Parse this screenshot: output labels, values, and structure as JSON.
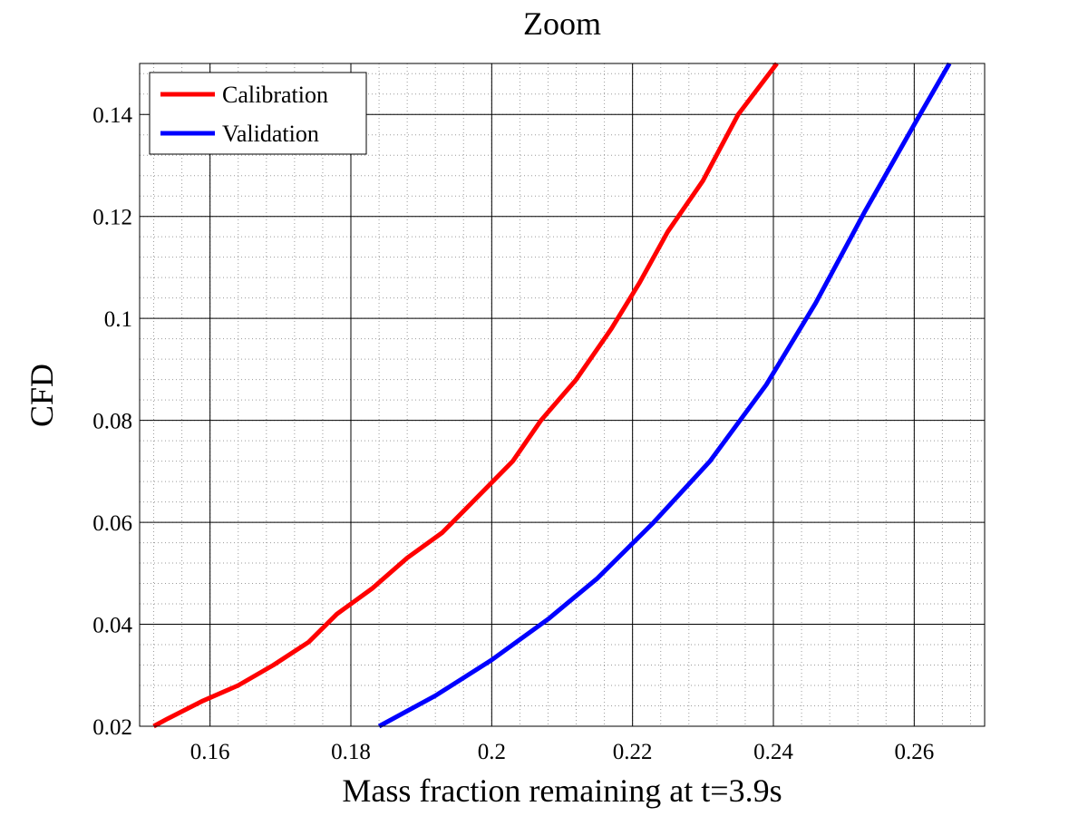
{
  "chart_data": {
    "type": "line",
    "title": "Zoom",
    "xlabel": "Mass fraction remaining at t=3.9s",
    "ylabel": "CFD",
    "xlim": [
      0.15,
      0.27
    ],
    "ylim": [
      0.02,
      0.15
    ],
    "x_ticks": [
      0.16,
      0.18,
      0.2,
      0.22,
      0.24,
      0.26
    ],
    "x_tick_labels": [
      "0.16",
      "0.18",
      "0.2",
      "0.22",
      "0.24",
      "0.26"
    ],
    "y_ticks": [
      0.02,
      0.04,
      0.06,
      0.08,
      0.1,
      0.12,
      0.14
    ],
    "y_tick_labels": [
      "0.02",
      "0.04",
      "0.06",
      "0.08",
      "0.1",
      "0.12",
      "0.14"
    ],
    "x_minor_step": 0.004,
    "y_minor_step": 0.004,
    "grid": true,
    "legend_position": "top-left",
    "series": [
      {
        "name": "Calibration",
        "color": "#ff0000",
        "points": [
          [
            0.152,
            0.02
          ],
          [
            0.154,
            0.0215
          ],
          [
            0.159,
            0.025
          ],
          [
            0.164,
            0.028
          ],
          [
            0.169,
            0.032
          ],
          [
            0.174,
            0.0365
          ],
          [
            0.178,
            0.042
          ],
          [
            0.183,
            0.047
          ],
          [
            0.188,
            0.053
          ],
          [
            0.193,
            0.058
          ],
          [
            0.198,
            0.065
          ],
          [
            0.203,
            0.072
          ],
          [
            0.207,
            0.08
          ],
          [
            0.212,
            0.088
          ],
          [
            0.217,
            0.098
          ],
          [
            0.221,
            0.107
          ],
          [
            0.225,
            0.117
          ],
          [
            0.23,
            0.127
          ],
          [
            0.235,
            0.14
          ],
          [
            0.2405,
            0.15
          ]
        ]
      },
      {
        "name": "Validation",
        "color": "#0000ff",
        "points": [
          [
            0.184,
            0.02
          ],
          [
            0.192,
            0.026
          ],
          [
            0.2,
            0.033
          ],
          [
            0.208,
            0.041
          ],
          [
            0.215,
            0.049
          ],
          [
            0.223,
            0.06
          ],
          [
            0.231,
            0.072
          ],
          [
            0.239,
            0.087
          ],
          [
            0.246,
            0.103
          ],
          [
            0.253,
            0.121
          ],
          [
            0.26,
            0.138
          ],
          [
            0.265,
            0.15
          ]
        ]
      }
    ]
  }
}
